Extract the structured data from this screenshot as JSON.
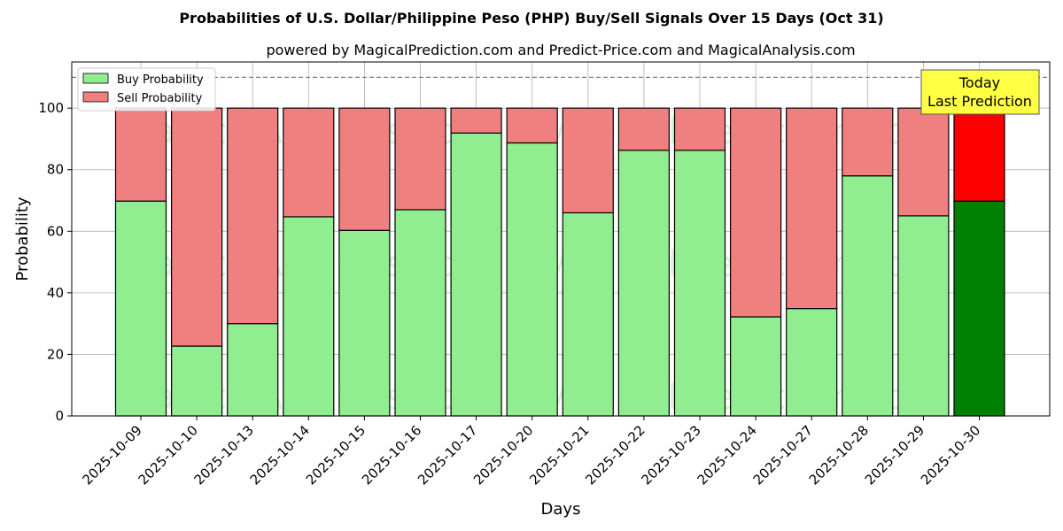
{
  "chart_data": {
    "type": "bar",
    "stacked": true,
    "title": "Probabilities of U.S. Dollar/Philippine Peso (PHP) Buy/Sell Signals Over 15 Days (Oct 31)",
    "subtitle": "powered by MagicalPrediction.com and Predict-Price.com and MagicalAnalysis.com",
    "xlabel": "Days",
    "ylabel": "Probability",
    "ylim": [
      0,
      115
    ],
    "yticks": [
      0,
      20,
      40,
      60,
      80,
      100
    ],
    "reference_line": 110,
    "grid": true,
    "legend_position": "top-left",
    "categories": [
      "2025-10-09",
      "2025-10-10",
      "2025-10-13",
      "2025-10-14",
      "2025-10-15",
      "2025-10-16",
      "2025-10-17",
      "2025-10-20",
      "2025-10-21",
      "2025-10-22",
      "2025-10-23",
      "2025-10-24",
      "2025-10-27",
      "2025-10-28",
      "2025-10-29",
      "2025-10-30"
    ],
    "series": [
      {
        "name": "Buy Probability",
        "color": "#90ee90",
        "values": [
          69.8,
          22.7,
          30.0,
          64.7,
          60.3,
          67.0,
          91.9,
          88.7,
          66.0,
          86.3,
          86.3,
          32.2,
          34.9,
          78.0,
          65.0,
          69.8
        ]
      },
      {
        "name": "Sell Probability",
        "color": "#f08080",
        "values": [
          30.2,
          77.3,
          70.0,
          35.3,
          39.7,
          33.0,
          8.1,
          11.3,
          34.0,
          13.7,
          13.7,
          67.8,
          65.1,
          22.0,
          35.0,
          30.2
        ]
      }
    ],
    "highlight": {
      "index": 15,
      "buy_color": "#008000",
      "sell_color": "#ff0000"
    },
    "annotation": {
      "lines": [
        "Today",
        "Last Prediction"
      ],
      "background": "#ffff44",
      "position": "top-right"
    },
    "watermarks": [
      "MagicalAnalysis.com",
      "MagicalPrediction.com"
    ]
  }
}
